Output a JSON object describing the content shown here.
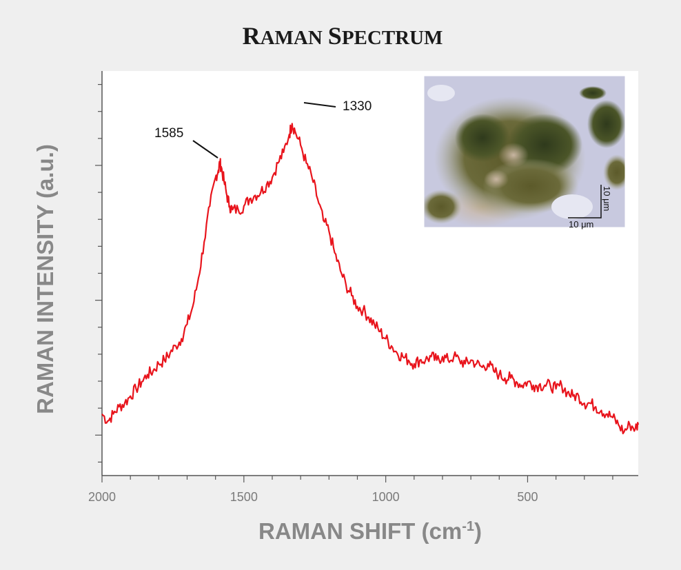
{
  "chart_data": {
    "type": "line",
    "title": "Raman Spectrum",
    "title_parts": {
      "r": "R",
      "aman": "AMAN",
      "s": "S",
      "pectrum": "PECTRUM"
    },
    "xlabel_main": "RAMAN SHIFT (cm",
    "xlabel_sup": "-1",
    "xlabel_close": ")",
    "ylabel": "RAMAN INTENSITY (a.u.)",
    "x_reversed": true,
    "xlim": [
      2000,
      110
    ],
    "ylim": [
      0,
      1
    ],
    "x_ticks": [
      2000,
      1500,
      1000,
      500
    ],
    "x_tick_labels": [
      "2000",
      "1500",
      "1000",
      "500"
    ],
    "grid": false,
    "series": [
      {
        "color": "#e8141c",
        "x": [
          2000,
          1980,
          1960,
          1940,
          1920,
          1900,
          1880,
          1860,
          1840,
          1820,
          1800,
          1780,
          1760,
          1740,
          1720,
          1700,
          1680,
          1660,
          1640,
          1620,
          1600,
          1590,
          1585,
          1580,
          1570,
          1560,
          1550,
          1540,
          1520,
          1500,
          1480,
          1460,
          1440,
          1420,
          1400,
          1380,
          1360,
          1340,
          1330,
          1320,
          1300,
          1280,
          1260,
          1240,
          1220,
          1200,
          1180,
          1160,
          1140,
          1120,
          1100,
          1080,
          1060,
          1040,
          1020,
          1000,
          980,
          960,
          940,
          920,
          900,
          880,
          860,
          840,
          820,
          800,
          780,
          760,
          740,
          720,
          700,
          680,
          660,
          640,
          620,
          600,
          580,
          560,
          540,
          520,
          500,
          480,
          460,
          440,
          420,
          400,
          380,
          360,
          340,
          320,
          300,
          280,
          260,
          240,
          220,
          200,
          180,
          160,
          140,
          120,
          110
        ],
        "y": [
          0.12,
          0.1,
          0.12,
          0.14,
          0.15,
          0.17,
          0.19,
          0.21,
          0.23,
          0.24,
          0.26,
          0.27,
          0.29,
          0.31,
          0.33,
          0.37,
          0.42,
          0.5,
          0.6,
          0.7,
          0.78,
          0.8,
          0.82,
          0.81,
          0.77,
          0.73,
          0.7,
          0.69,
          0.69,
          0.7,
          0.72,
          0.73,
          0.74,
          0.76,
          0.78,
          0.82,
          0.85,
          0.9,
          0.93,
          0.91,
          0.87,
          0.82,
          0.78,
          0.72,
          0.66,
          0.63,
          0.57,
          0.52,
          0.48,
          0.45,
          0.42,
          0.41,
          0.39,
          0.37,
          0.35,
          0.33,
          0.31,
          0.29,
          0.28,
          0.27,
          0.26,
          0.27,
          0.27,
          0.28,
          0.27,
          0.28,
          0.27,
          0.28,
          0.27,
          0.26,
          0.27,
          0.26,
          0.25,
          0.26,
          0.24,
          0.23,
          0.22,
          0.22,
          0.21,
          0.2,
          0.21,
          0.2,
          0.2,
          0.2,
          0.2,
          0.19,
          0.2,
          0.18,
          0.17,
          0.17,
          0.15,
          0.15,
          0.14,
          0.13,
          0.12,
          0.11,
          0.09,
          0.07,
          0.09,
          0.08,
          0.09
        ]
      }
    ],
    "annotations": [
      {
        "text": "1585",
        "x": 1585
      },
      {
        "text": "1330",
        "x": 1330
      }
    ],
    "inset": {
      "description_label": "micrograph",
      "scale_x_label": "10 μm",
      "scale_y_label": "10 μm"
    },
    "colors": {
      "background": "#efefef",
      "plot_area": "#ffffff",
      "line": "#e8141c",
      "axis": "#555555"
    }
  }
}
